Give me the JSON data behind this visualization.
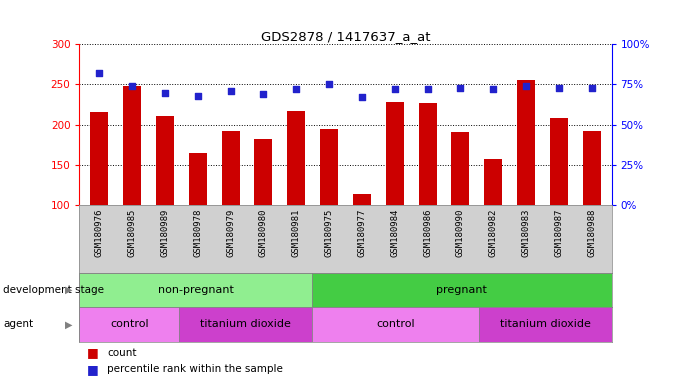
{
  "title": "GDS2878 / 1417637_a_at",
  "samples": [
    "GSM180976",
    "GSM180985",
    "GSM180989",
    "GSM180978",
    "GSM180979",
    "GSM180980",
    "GSM180981",
    "GSM180975",
    "GSM180977",
    "GSM180984",
    "GSM180986",
    "GSM180990",
    "GSM180982",
    "GSM180983",
    "GSM180987",
    "GSM180988"
  ],
  "counts": [
    216,
    248,
    211,
    165,
    192,
    183,
    217,
    195,
    114,
    228,
    227,
    191,
    157,
    255,
    209,
    192
  ],
  "percentile_ranks": [
    82,
    74,
    70,
    68,
    71,
    69,
    72,
    75,
    67,
    72,
    72,
    73,
    72,
    74,
    73,
    73
  ],
  "ylim_left": [
    100,
    300
  ],
  "ylim_right": [
    0,
    100
  ],
  "yticks_left": [
    100,
    150,
    200,
    250,
    300
  ],
  "yticks_right": [
    0,
    25,
    50,
    75,
    100
  ],
  "bar_color": "#cc0000",
  "dot_color": "#2222cc",
  "bg_color": "#d0d0d0",
  "dev_stage_colors": [
    "#90ee90",
    "#44cc44"
  ],
  "agent_colors": [
    "#ee80ee",
    "#cc40cc"
  ],
  "groups_dev": [
    {
      "label": "non-pregnant",
      "start": 0,
      "end": 7
    },
    {
      "label": "pregnant",
      "start": 7,
      "end": 16
    }
  ],
  "groups_agent": [
    {
      "label": "control",
      "start": 0,
      "end": 3
    },
    {
      "label": "titanium dioxide",
      "start": 3,
      "end": 7
    },
    {
      "label": "control",
      "start": 7,
      "end": 12
    },
    {
      "label": "titanium dioxide",
      "start": 12,
      "end": 16
    }
  ]
}
